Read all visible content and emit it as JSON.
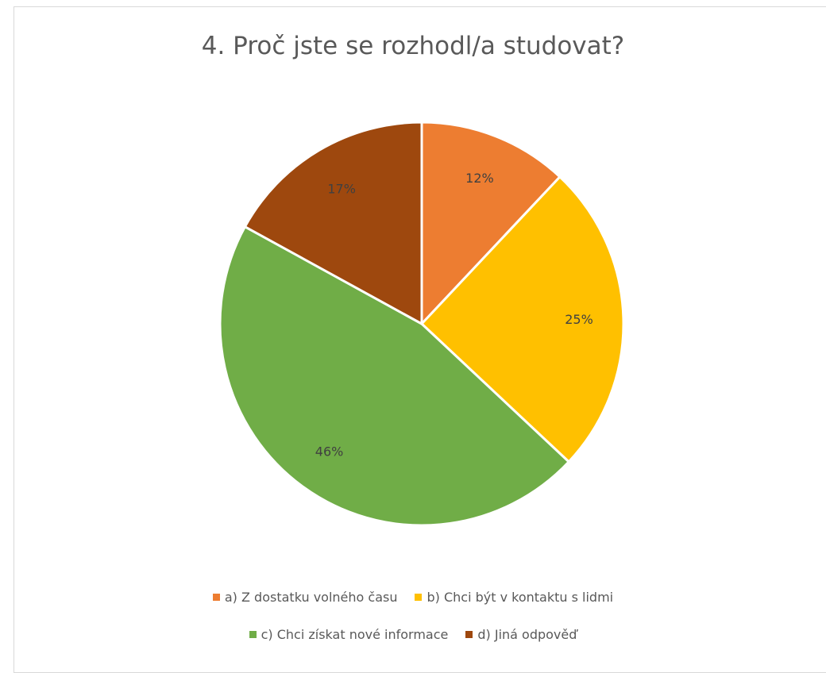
{
  "chart_data": {
    "type": "pie",
    "title": "4. Proč jste se rozhodl/a studovat?",
    "legend_placement": "bottom",
    "slices": [
      {
        "label": "a) Z dostatku volného času",
        "value": 12,
        "value_label": "12%",
        "color": "#ED7D31"
      },
      {
        "label": "b) Chci být v kontaktu s lidmi",
        "value": 25,
        "value_label": "25%",
        "color": "#FFC000"
      },
      {
        "label": "c) Chci získat nové informace",
        "value": 46,
        "value_label": "46%",
        "color": "#70AD47"
      },
      {
        "label": "d) Jiná odpověď",
        "value": 17,
        "value_label": "17%",
        "color": "#9E480E"
      }
    ]
  }
}
